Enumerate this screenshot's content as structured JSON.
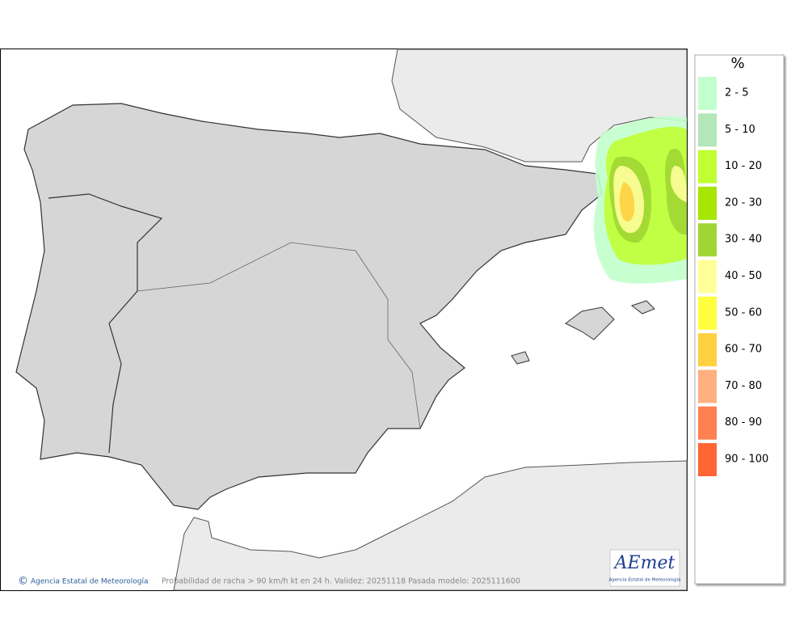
{
  "map": {
    "footer_text": "Probabilidad de racha > 90 km/h kt en 24 h. Validez: 20251118 Pasada modelo: 2025111600",
    "copyright": "Agencia Estatal de Meteorología",
    "logo": {
      "name": "AEmet",
      "subtitle": "Agencia Estatal de Meteorología"
    }
  },
  "legend": {
    "title": "%",
    "items": [
      {
        "label": "2 - 5",
        "color": "#c2ffcc"
      },
      {
        "label": "5 - 10",
        "color": "#b3e6b8"
      },
      {
        "label": "10 - 20",
        "color": "#bfff33"
      },
      {
        "label": "20 - 30",
        "color": "#a6e600"
      },
      {
        "label": "30 - 40",
        "color": "#a0d633"
      },
      {
        "label": "40 - 50",
        "color": "#ffff99"
      },
      {
        "label": "50 - 60",
        "color": "#ffff40"
      },
      {
        "label": "60 - 70",
        "color": "#ffd040"
      },
      {
        "label": "70 - 80",
        "color": "#ffb080"
      },
      {
        "label": "80 - 90",
        "color": "#ff8050"
      },
      {
        "label": "90 - 100",
        "color": "#ff6633"
      }
    ]
  }
}
